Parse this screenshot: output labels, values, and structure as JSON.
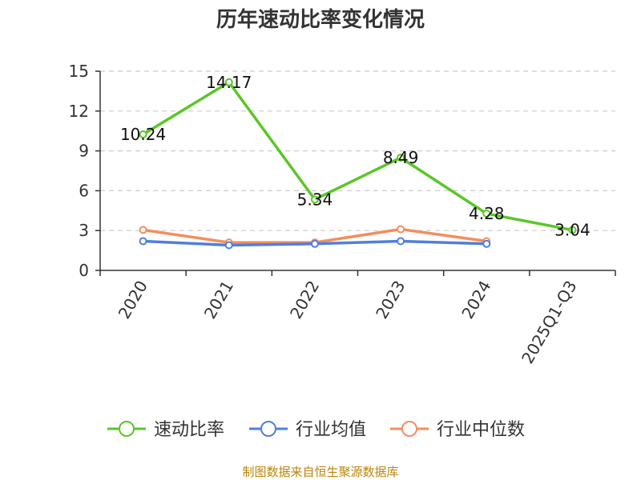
{
  "chart_data": {
    "type": "line",
    "title": "历年速动比率变化情况",
    "categories": [
      "2020",
      "2021",
      "2022",
      "2023",
      "2024",
      "2025Q1-Q3"
    ],
    "ylim": [
      0,
      15
    ],
    "yticks": [
      0,
      3,
      6,
      9,
      12,
      15
    ],
    "grid": true,
    "legend_position": "bottom",
    "series": [
      {
        "name": "速动比率",
        "color": "#5bc627",
        "values": [
          10.24,
          14.17,
          5.34,
          8.49,
          4.28,
          3.04
        ],
        "labels": [
          "10.24",
          "14.17",
          "5.34",
          "8.49",
          "4.28",
          "3.04"
        ]
      },
      {
        "name": "行业均值",
        "color": "#4f7fdc",
        "values": [
          2.2,
          1.9,
          2.0,
          2.2,
          2.0,
          null
        ]
      },
      {
        "name": "行业中位数",
        "color": "#f28e5e",
        "values": [
          3.05,
          2.1,
          2.1,
          3.1,
          2.2,
          null
        ]
      }
    ]
  },
  "source_text": "制图数据来自恒生聚源数据库"
}
